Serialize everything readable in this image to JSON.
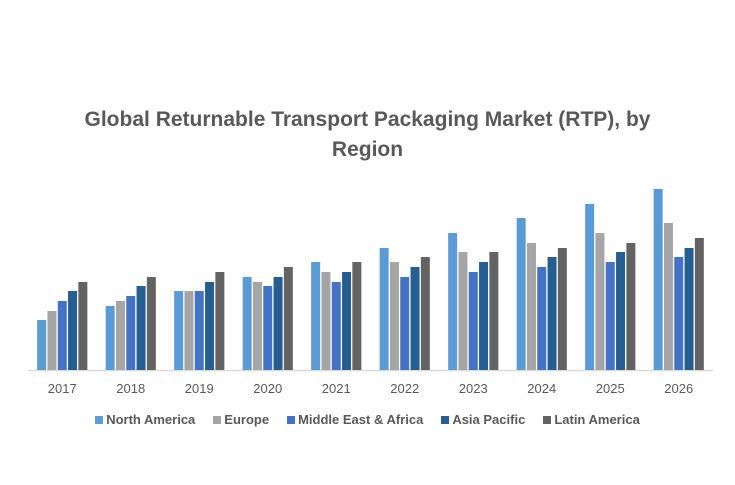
{
  "chart_data": {
    "type": "bar",
    "title": "Global Returnable Transport Packaging Market (RTP), by Region",
    "title_lines": [
      "Global Returnable Transport Packaging Market (RTP), by",
      "Region"
    ],
    "xlabel": "",
    "ylabel": "",
    "y_axis_shown": false,
    "grid": false,
    "legend_position": "bottom",
    "categories": [
      "2017",
      "2018",
      "2019",
      "2020",
      "2021",
      "2022",
      "2023",
      "2024",
      "2025",
      "2026"
    ],
    "ylim": [
      0,
      190
    ],
    "series": [
      {
        "name": "North America",
        "color": "#5B9BD5",
        "values": [
          50,
          64,
          79,
          93,
          108,
          122,
          137,
          152,
          166,
          181
        ]
      },
      {
        "name": "Europe",
        "color": "#A5A5A5",
        "values": [
          59,
          69,
          79,
          88,
          98,
          108,
          118,
          127,
          137,
          147
        ]
      },
      {
        "name": "Middle East & Africa",
        "color": "#4472C4",
        "values": [
          69,
          74,
          79,
          84,
          88,
          93,
          98,
          103,
          108,
          113
        ]
      },
      {
        "name": "Asia Pacific",
        "color": "#255E91",
        "values": [
          79,
          84,
          88,
          93,
          98,
          103,
          108,
          113,
          118,
          122
        ]
      },
      {
        "name": "Latin America",
        "color": "#636363",
        "values": [
          88,
          93,
          98,
          103,
          108,
          113,
          118,
          122,
          127,
          132
        ]
      }
    ]
  }
}
